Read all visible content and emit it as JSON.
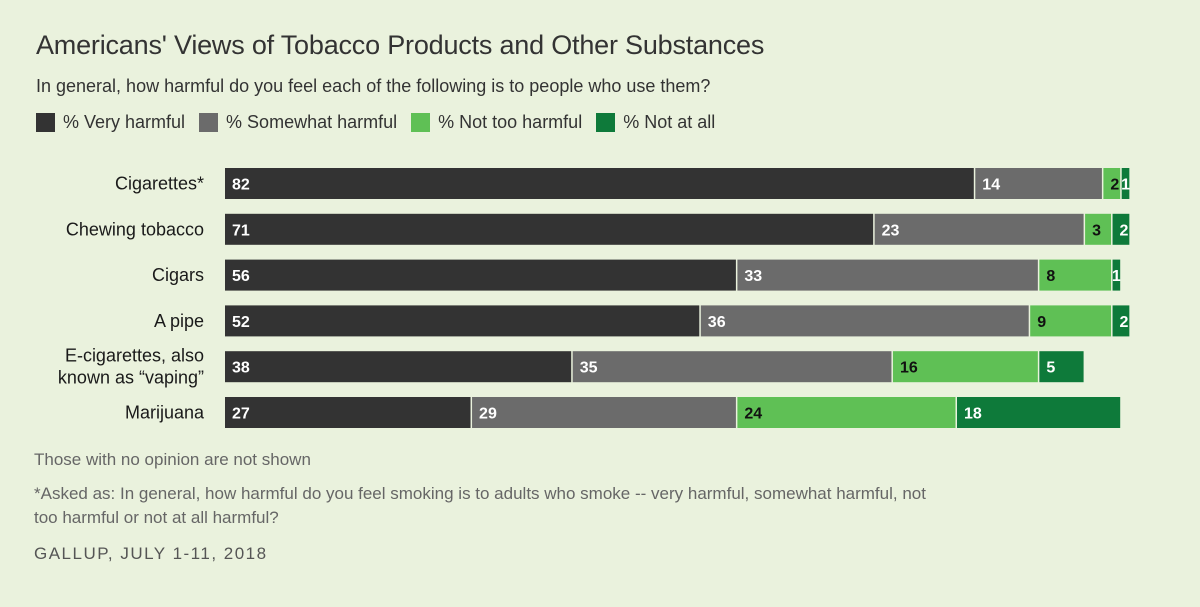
{
  "chart_data": {
    "type": "bar",
    "orientation": "horizontal",
    "stacked": true,
    "title": "Americans' Views of Tobacco Products and Other Substances",
    "subtitle": "In general, how harmful do you feel each of the following is to people who use them?",
    "categories": [
      [
        "Cigarettes*"
      ],
      [
        "Chewing tobacco"
      ],
      [
        "Cigars"
      ],
      [
        "A pipe"
      ],
      [
        "E-cigarettes, also",
        "known as “vaping”"
      ],
      [
        "Marijuana"
      ]
    ],
    "series": [
      {
        "name": "% Very harmful",
        "color": "#333333",
        "label_color": "#ffffff",
        "values": [
          82,
          71,
          56,
          52,
          38,
          27
        ]
      },
      {
        "name": "% Somewhat harmful",
        "color": "#6b6b6b",
        "label_color": "#ffffff",
        "values": [
          14,
          23,
          33,
          36,
          35,
          29
        ]
      },
      {
        "name": "% Not too harmful",
        "color": "#5fc055",
        "label_color": "#111111",
        "values": [
          2,
          3,
          8,
          9,
          16,
          24
        ]
      },
      {
        "name": "% Not at all",
        "color": "#0e7a3a",
        "label_color": "#ffffff",
        "values": [
          1,
          2,
          1,
          2,
          5,
          18
        ]
      }
    ],
    "xlim": [
      0,
      100
    ],
    "grid": false,
    "legend_position": "top-left"
  },
  "notes": {
    "no_opinion": "Those with no opinion are not shown",
    "footnote": "*Asked as: In general, how harmful do you feel smoking is to adults who smoke -- very harmful, somewhat harmful, not too harmful or not at all harmful?",
    "source": "GALLUP, JULY 1-11, 2018"
  }
}
